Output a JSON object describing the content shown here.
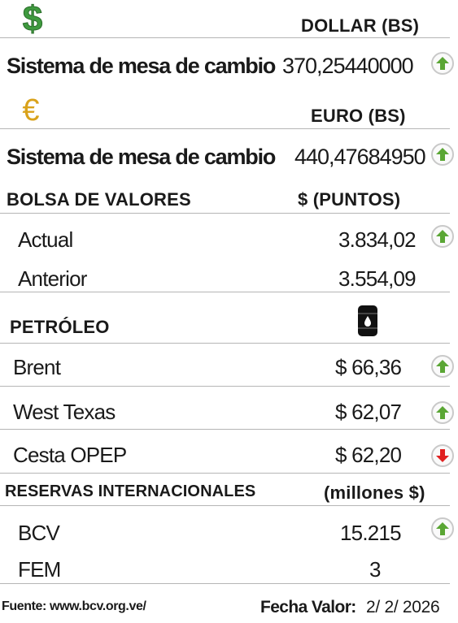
{
  "dollar": {
    "icon": "dollar-sign-icon",
    "header": "DOLLAR (BS)",
    "label": "Sistema de mesa de cambio",
    "value": "370,25440000",
    "trend": "up"
  },
  "euro": {
    "icon": "euro-sign-icon",
    "header": "EURO (BS)",
    "label": "Sistema de mesa de cambio",
    "value": "440,47684950",
    "trend": "up"
  },
  "bolsa": {
    "title": "BOLSA DE VALORES",
    "unit": "$ (PUNTOS)",
    "rows": [
      {
        "label": "Actual",
        "value": "3.834,02",
        "trend": "up"
      },
      {
        "label": "Anterior",
        "value": "3.554,09",
        "trend": null
      }
    ]
  },
  "petroleo": {
    "title": "PETRÓLEO",
    "icon": "oil-barrel-icon",
    "rows": [
      {
        "label": "Brent",
        "value": "$ 66,36",
        "trend": "up"
      },
      {
        "label": "West Texas",
        "value": "$ 62,07",
        "trend": "up"
      },
      {
        "label": "Cesta OPEP",
        "value": "$ 62,20",
        "trend": "down"
      }
    ]
  },
  "reservas": {
    "title": "RESERVAS INTERNACIONALES",
    "unit": "(millones $)",
    "rows": [
      {
        "label": "BCV",
        "value": "15.215",
        "trend": "up"
      },
      {
        "label": "FEM",
        "value": "3",
        "trend": null
      }
    ]
  },
  "footer": {
    "source": "Fuente: www.bcv.org.ve/",
    "date_label": "Fecha Valor:",
    "date_value": "2/ 2/ 2026"
  },
  "colors": {
    "up": "#5aa634",
    "down": "#e02020",
    "dollar": "#3f9a3f",
    "euro": "#d9a21a"
  }
}
